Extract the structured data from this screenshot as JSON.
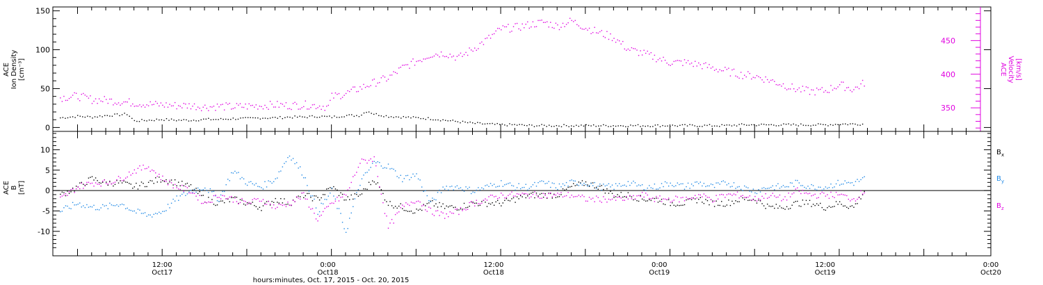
{
  "colors": {
    "density": "#000000",
    "velocity": "#e000e0",
    "bx": "#000000",
    "by": "#1e88e5",
    "bz": "#e000e0",
    "axes": "#000000"
  },
  "chart_data": [
    {
      "type": "scatter",
      "panel": "top",
      "ylabel_left": [
        "ACE",
        "Ion Density",
        "[cm⁻³]"
      ],
      "ylabel_right": [
        "ACE",
        "Velocity",
        "[km/s]"
      ],
      "ylim_left": [
        -5,
        155
      ],
      "ylim_right": [
        315,
        500
      ],
      "yticks_left": [
        "0",
        "50",
        "100",
        "150"
      ],
      "yticks_right": [
        "350",
        "400",
        "450"
      ],
      "yticks_left_values": [
        0,
        50,
        100,
        150
      ],
      "yticks_right_values": [
        350,
        400,
        450
      ],
      "series": [
        {
          "name": "Ion Density",
          "axis": "left",
          "x": [
            -14.5,
            -12,
            -10,
            -8,
            -6,
            -5,
            -4,
            -2,
            0,
            2,
            4,
            6,
            8,
            10,
            12,
            14,
            16,
            18,
            20,
            22,
            24,
            26,
            28,
            29,
            30,
            32,
            34,
            36,
            38,
            40,
            42,
            44,
            46,
            48,
            50,
            52,
            54,
            56,
            58,
            60,
            62,
            64,
            66,
            68,
            70,
            72,
            74,
            76,
            78,
            80,
            82,
            84,
            86,
            88,
            90,
            92,
            94,
            96,
            98,
            99.5
          ],
          "y": [
            13,
            15,
            14,
            16,
            17,
            18,
            9,
            10,
            11,
            10,
            10,
            11,
            11,
            12,
            12,
            13,
            13,
            14,
            14,
            15,
            14,
            16,
            16,
            22,
            18,
            15,
            14,
            13,
            12,
            10,
            8,
            6,
            5,
            4,
            4,
            3,
            3,
            3,
            3,
            3,
            3,
            3,
            3,
            3,
            3,
            3,
            3,
            3,
            3,
            3,
            4,
            4,
            4,
            4,
            4,
            4,
            4,
            5,
            5,
            5
          ]
        },
        {
          "name": "Velocity",
          "axis": "right",
          "x": [
            -14.5,
            -12,
            -10,
            -8,
            -6,
            -4,
            -2,
            0,
            2,
            4,
            6,
            8,
            10,
            12,
            14,
            16,
            18,
            20,
            22,
            23.5,
            24,
            26,
            28,
            30,
            32,
            34,
            36,
            38,
            40,
            42,
            44,
            46,
            48,
            50,
            52,
            54,
            56,
            58,
            60,
            62,
            64,
            66,
            68,
            70,
            72,
            74,
            76,
            78,
            80,
            82,
            84,
            86,
            88,
            90,
            92,
            94,
            96,
            98,
            99.5
          ],
          "y": [
            366,
            368,
            363,
            362,
            360,
            358,
            356,
            355,
            354,
            354,
            352,
            353,
            352,
            353,
            354,
            355,
            354,
            355,
            354,
            352,
            367,
            372,
            380,
            388,
            395,
            410,
            420,
            430,
            432,
            425,
            438,
            452,
            468,
            470,
            474,
            478,
            472,
            480,
            470,
            462,
            455,
            438,
            432,
            425,
            418,
            418,
            415,
            410,
            405,
            400,
            398,
            392,
            385,
            378,
            375,
            376,
            385,
            378,
            388
          ]
        }
      ]
    },
    {
      "type": "line",
      "panel": "bottom",
      "ylabel": [
        "ACE",
        "B",
        "[nT]"
      ],
      "ylim": [
        -16,
        14.5
      ],
      "yticks": [
        "-10",
        "-5",
        "0",
        "5",
        "10"
      ],
      "ytick_values": [
        -10,
        -5,
        0,
        5,
        10
      ],
      "zero_line": true,
      "legend_position": "right",
      "xlabel": "hours:minutes, Oct. 17, 2015 - Oct. 20, 2015",
      "xlim": [
        -15.5,
        117.5
      ],
      "x_ticks": [
        {
          "hours": 0,
          "time": "12:00",
          "date": "Oct17"
        },
        {
          "hours": 12,
          "time": "0:00",
          "date": "Oct18"
        },
        {
          "hours": 24,
          "time": "12:00",
          "date": "Oct18"
        },
        {
          "hours": 36,
          "time": "0:00",
          "date": "Oct19"
        },
        {
          "hours": 48,
          "time": "12:00",
          "date": "Oct19"
        },
        {
          "hours": 60,
          "time": "0:00",
          "date": "Oct20"
        }
      ],
      "series": [
        {
          "name": "Bx",
          "legend_main": "B",
          "legend_sub": "x",
          "x": [
            -14.5,
            -12,
            -10,
            -8,
            -6,
            -4,
            -2,
            0,
            2,
            4,
            6,
            8,
            10,
            12,
            14,
            16,
            18,
            20,
            22,
            24,
            26,
            28,
            30,
            32,
            34,
            36,
            38,
            40,
            42,
            44,
            46,
            48,
            50,
            52,
            54,
            56,
            58,
            60,
            62,
            64,
            66,
            68,
            70,
            72,
            74,
            76,
            78,
            80,
            82,
            84,
            86,
            88,
            90,
            92,
            94,
            96,
            98,
            99.5
          ],
          "y": [
            -1,
            1,
            3,
            2,
            2,
            1,
            2,
            3,
            2,
            1,
            -2,
            -3,
            -2,
            -3,
            -4,
            -2,
            -3,
            -1,
            -2,
            1,
            -2,
            -1,
            3,
            -3,
            -4,
            -5,
            -3,
            -4,
            -4,
            -3,
            -3,
            -3,
            -2,
            -1,
            -1,
            -1,
            1,
            2,
            1,
            -1,
            -1,
            -2,
            -2,
            -3,
            -3,
            -2,
            -3,
            -3,
            -2,
            -2,
            -4,
            -4,
            -3,
            -3,
            -4,
            -3,
            -4,
            0
          ]
        },
        {
          "name": "By",
          "legend_main": "B",
          "legend_sub": "y",
          "x": [
            -14.5,
            -12,
            -10,
            -8,
            -6,
            -4,
            -2,
            0,
            2,
            4,
            6,
            8,
            10,
            12,
            14,
            16,
            18,
            20,
            22,
            24,
            26,
            28,
            30,
            32,
            34,
            36,
            38,
            40,
            42,
            44,
            46,
            48,
            50,
            52,
            54,
            56,
            58,
            60,
            62,
            64,
            66,
            68,
            70,
            72,
            74,
            76,
            78,
            80,
            82,
            84,
            86,
            88,
            90,
            92,
            94,
            96,
            98,
            99.5
          ],
          "y": [
            -5,
            -3,
            -4,
            -4,
            -3,
            -5,
            -6,
            -5,
            -2,
            0,
            1,
            -2,
            5,
            2,
            1,
            3,
            9,
            4,
            -5,
            0,
            -10,
            2,
            7,
            6,
            3,
            4,
            -3,
            1,
            1,
            0,
            1,
            2,
            1,
            1,
            2,
            1,
            2,
            2,
            1,
            1,
            2,
            1,
            1,
            2,
            1,
            2,
            1,
            2,
            1,
            0,
            1,
            1,
            2,
            1,
            1,
            2,
            2,
            3
          ]
        },
        {
          "name": "Bz",
          "legend_main": "B",
          "legend_sub": "z",
          "x": [
            -14.5,
            -12,
            -10,
            -8,
            -6,
            -4,
            -2,
            0,
            2,
            4,
            6,
            8,
            10,
            12,
            14,
            16,
            18,
            20,
            22,
            24,
            26,
            28,
            30,
            32,
            34,
            36,
            38,
            40,
            42,
            44,
            46,
            48,
            50,
            52,
            54,
            56,
            58,
            60,
            62,
            64,
            66,
            68,
            70,
            72,
            74,
            76,
            78,
            80,
            82,
            84,
            86,
            88,
            90,
            92,
            94,
            96,
            98,
            99.5
          ],
          "y": [
            -2,
            1,
            2,
            2,
            3,
            5,
            6,
            3,
            1,
            0,
            -3,
            -1,
            -2,
            -3,
            -2,
            -4,
            -3,
            -1,
            -7,
            -3,
            -1,
            7,
            8,
            -9,
            -4,
            -2,
            -5,
            -6,
            -5,
            -3,
            -2,
            -1,
            -1,
            -1,
            -1,
            -1,
            -1,
            -2,
            -2,
            -2,
            -2,
            -1,
            -2,
            -2,
            -2,
            -1,
            -2,
            -1,
            -1,
            -2,
            -1,
            -2,
            0,
            -1,
            -1,
            -1,
            -2,
            0
          ]
        }
      ]
    }
  ]
}
